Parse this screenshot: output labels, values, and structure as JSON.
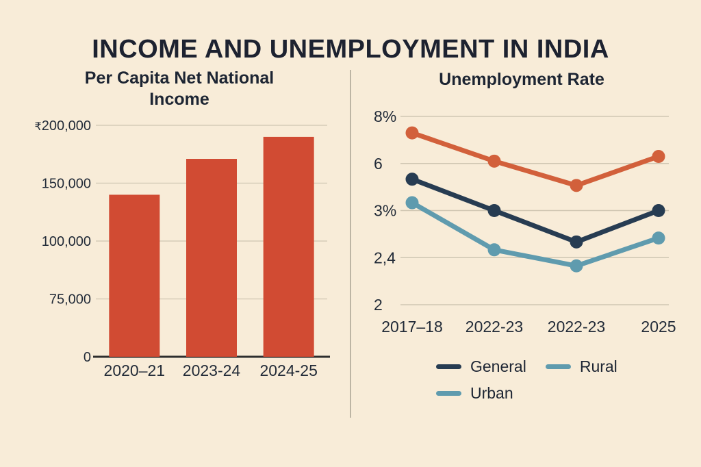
{
  "page": {
    "title": "INCOME AND UNEMPLOYMENT IN INDIA",
    "background_color": "#f8ecd8",
    "divider_color": "#bdb5a4",
    "text_color": "#1d2533"
  },
  "chart_data": [
    {
      "type": "bar",
      "title": "Per Capita Net National Income",
      "categories": [
        "2020–21",
        "2023-24",
        "2024-25"
      ],
      "values": [
        140000,
        171000,
        190000
      ],
      "bar_color": "#d14b33",
      "currency_prefix": "₹",
      "y_ticks": [
        {
          "label": "₹200,000",
          "value": 200000
        },
        {
          "label": "150,000",
          "value": 150000
        },
        {
          "label": "100,000",
          "value": 100000
        },
        {
          "label": "75,000",
          "value": 75000
        },
        {
          "label": "0",
          "value": 0
        }
      ],
      "ylim": [
        0,
        200000
      ],
      "grid": true,
      "axis_color": "#2e2e2e",
      "grid_color": "#d6ccb8"
    },
    {
      "type": "line",
      "title": "Unemployment Rate",
      "x_labels": [
        "2017–18",
        "2022-23",
        "2022-23",
        "2025"
      ],
      "y_ticks": [
        {
          "label": "8%",
          "value": 8
        },
        {
          "label": "6",
          "value": 6
        },
        {
          "label": "3%",
          "value": 3
        },
        {
          "label": "2,4",
          "value": 2.4
        },
        {
          "label": "2",
          "value": 2
        }
      ],
      "ylim": [
        2,
        8
      ],
      "grid": true,
      "grid_color": "#cfc6b2",
      "series": [
        {
          "name": "",
          "color": "#d2603b",
          "values": [
            7.3,
            6.1,
            4.6,
            6.3
          ]
        },
        {
          "name": "General",
          "color": "#273c52",
          "values": [
            5.0,
            3.0,
            2.6,
            3.0
          ]
        },
        {
          "name": "",
          "color": "#5f9bae",
          "values": [
            3.5,
            2.5,
            2.33,
            2.65
          ]
        }
      ],
      "legend": [
        {
          "label": "General",
          "color": "#273c52"
        },
        {
          "label": "Rural",
          "color": "#5f9bae"
        },
        {
          "label": "Urban",
          "color": "#5f9bae"
        }
      ],
      "legend_position": "bottom"
    }
  ]
}
